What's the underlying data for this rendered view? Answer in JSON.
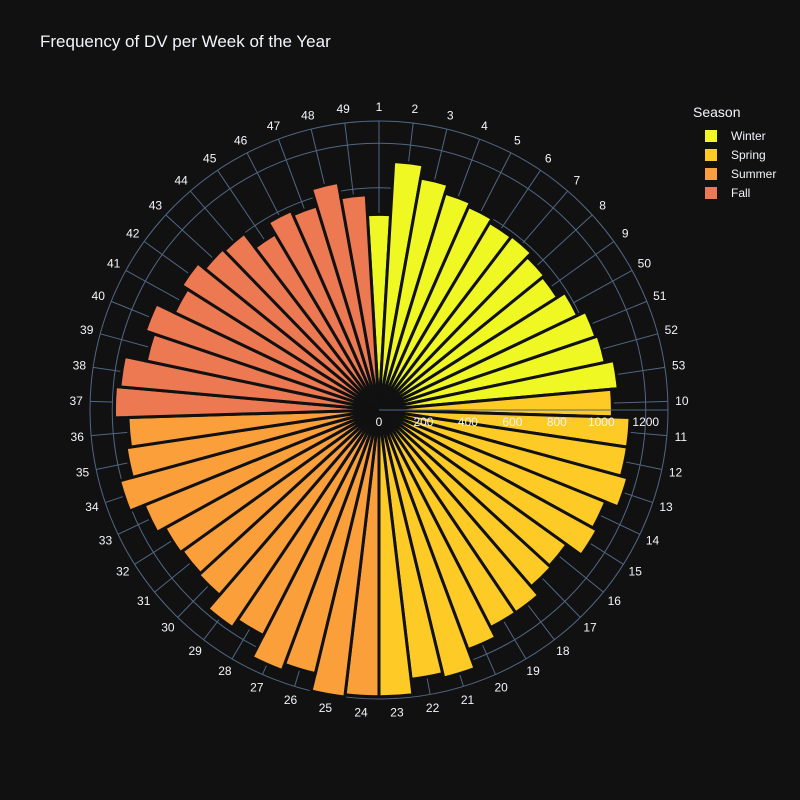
{
  "chart_data": {
    "type": "bar",
    "subtype": "polar",
    "title": "Frequency of DV per Week of the Year",
    "legend_title": "Season",
    "legend_position": "top-right",
    "radial_range": [
      0,
      1300
    ],
    "radial_ticks": [
      0,
      200,
      400,
      600,
      800,
      1000,
      1200
    ],
    "angular_order": [
      "1",
      "2",
      "3",
      "4",
      "5",
      "6",
      "7",
      "8",
      "9",
      "50",
      "51",
      "52",
      "53",
      "10",
      "11",
      "12",
      "13",
      "14",
      "15",
      "16",
      "17",
      "18",
      "19",
      "20",
      "21",
      "22",
      "23",
      "24",
      "25",
      "26",
      "27",
      "28",
      "29",
      "30",
      "31",
      "32",
      "33",
      "34",
      "35",
      "36",
      "37",
      "38",
      "39",
      "40",
      "41",
      "42",
      "43",
      "44",
      "45",
      "46",
      "47",
      "48",
      "49"
    ],
    "series": [
      {
        "name": "Winter",
        "color": "#eff823",
        "categories": [
          "1",
          "2",
          "3",
          "4",
          "5",
          "6",
          "7",
          "8",
          "9",
          "50",
          "51",
          "52",
          "53"
        ],
        "values": [
          880,
          1120,
          1060,
          1020,
          1000,
          980,
          985,
          960,
          950,
          990,
          1030,
          1040,
          1080
        ]
      },
      {
        "name": "Spring",
        "color": "#fdca26",
        "categories": [
          "10",
          "11",
          "12",
          "13",
          "14",
          "15",
          "16",
          "17",
          "18",
          "19",
          "20",
          "21",
          "22",
          "23"
        ],
        "values": [
          1050,
          1130,
          1130,
          1160,
          1100,
          1120,
          1040,
          1050,
          1100,
          1100,
          1150,
          1240,
          1220,
          1290
        ]
      },
      {
        "name": "Summer",
        "color": "#fb9f3a",
        "categories": [
          "24",
          "25",
          "26",
          "27",
          "28",
          "29",
          "30",
          "31",
          "32",
          "33",
          "34",
          "35",
          "36"
        ],
        "values": [
          1290,
          1300,
          1220,
          1250,
          1140,
          1180,
          1100,
          1090,
          1100,
          1140,
          1210,
          1150,
          1130
        ]
      },
      {
        "name": "Fall",
        "color": "#ed7953",
        "categories": [
          "37",
          "38",
          "39",
          "40",
          "41",
          "42",
          "43",
          "44",
          "45",
          "46",
          "47",
          "48",
          "49"
        ],
        "values": [
          1190,
          1170,
          1070,
          1110,
          1020,
          1050,
          1010,
          1000,
          920,
          980,
          960,
          1040,
          970
        ]
      }
    ]
  }
}
